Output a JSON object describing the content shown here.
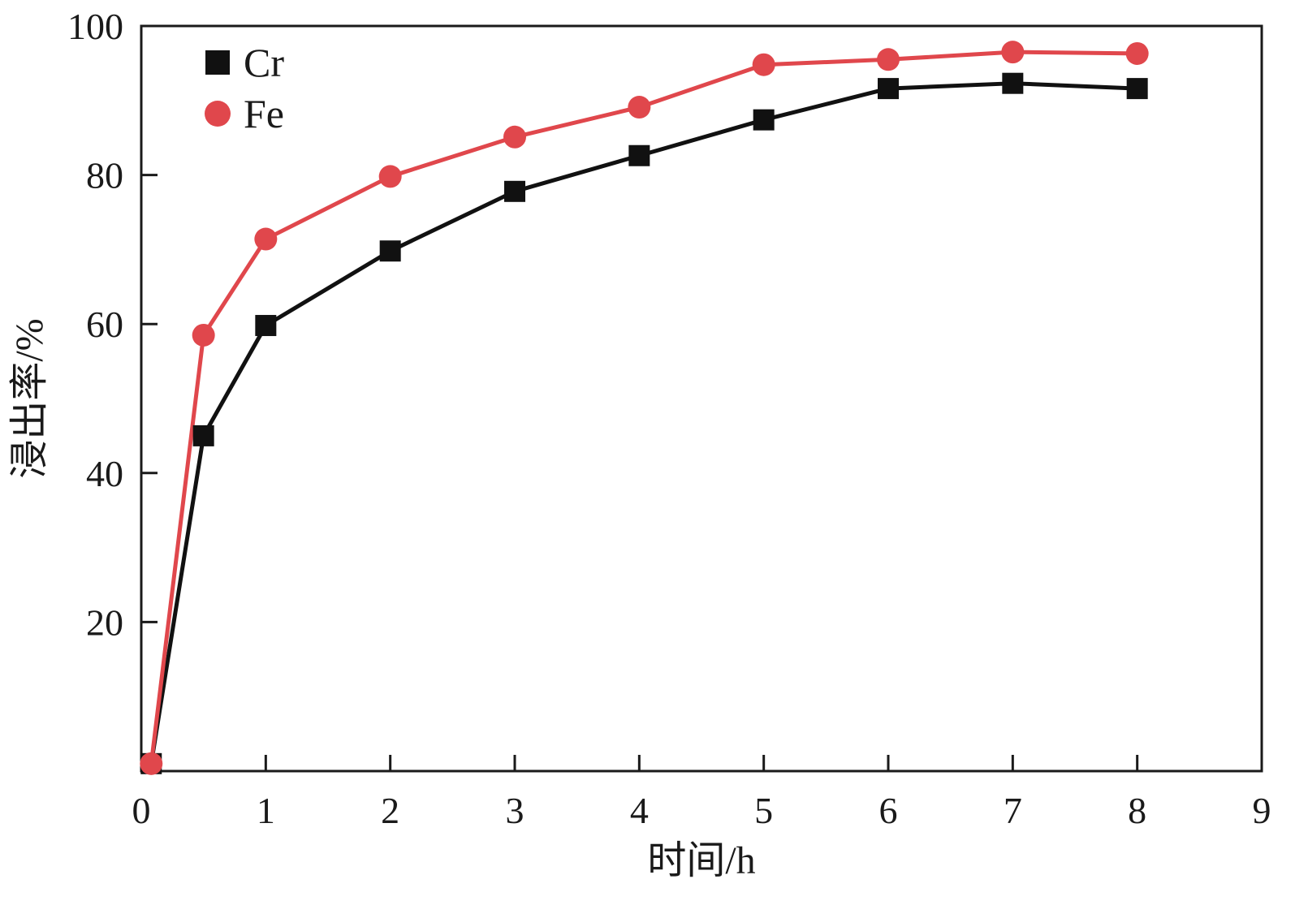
{
  "chart_data": {
    "type": "line",
    "xlabel": "时间/h",
    "ylabel": "浸出率/%",
    "xlim": [
      0,
      9
    ],
    "ylim": [
      0,
      100
    ],
    "x_ticks": [
      0,
      1,
      2,
      3,
      4,
      5,
      6,
      7,
      8,
      9
    ],
    "y_ticks": [
      20,
      40,
      60,
      80,
      100
    ],
    "grid": false,
    "legend_position": "top-left",
    "series": [
      {
        "name": "Cr",
        "marker": "square",
        "color": "#111111",
        "x": [
          0.08,
          0.5,
          1,
          2,
          3,
          4,
          5,
          6,
          7,
          8
        ],
        "y": [
          1,
          45,
          59.8,
          69.8,
          77.8,
          82.6,
          87.4,
          91.6,
          92.3,
          91.6
        ]
      },
      {
        "name": "Fe",
        "marker": "circle",
        "color": "#e0474c",
        "x": [
          0.08,
          0.5,
          1,
          2,
          3,
          4,
          5,
          6,
          7,
          8
        ],
        "y": [
          1,
          58.5,
          71.4,
          79.8,
          85.1,
          89.1,
          94.8,
          95.5,
          96.5,
          96.3
        ]
      }
    ]
  }
}
